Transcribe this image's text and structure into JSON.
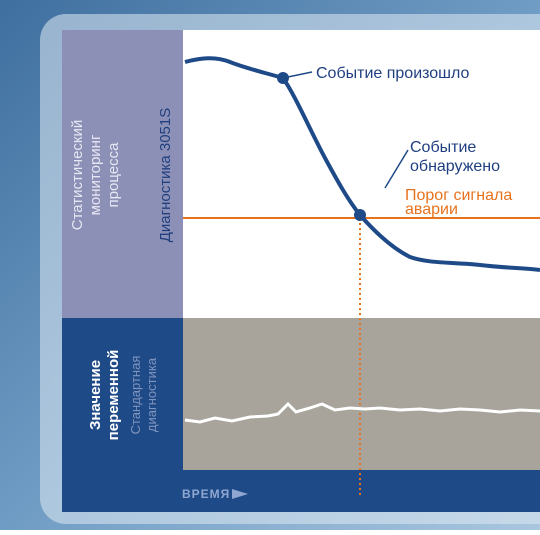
{
  "sidebar_top": {
    "lines": [
      "Статистический",
      "мониторинг",
      "процесса"
    ],
    "sublabel": "Диагностика 3051S"
  },
  "sidebar_bottom": {
    "lines": [
      "Значение",
      "переменной"
    ],
    "sublines": [
      "Стандартная",
      "диагностика"
    ]
  },
  "annotations": {
    "event_occurred": "Событие произошло",
    "event_detected": [
      "Событие",
      "обнаружено"
    ],
    "threshold": [
      "Порог сигнала",
      "аварии"
    ]
  },
  "time_axis": "ВРЕМЯ"
}
